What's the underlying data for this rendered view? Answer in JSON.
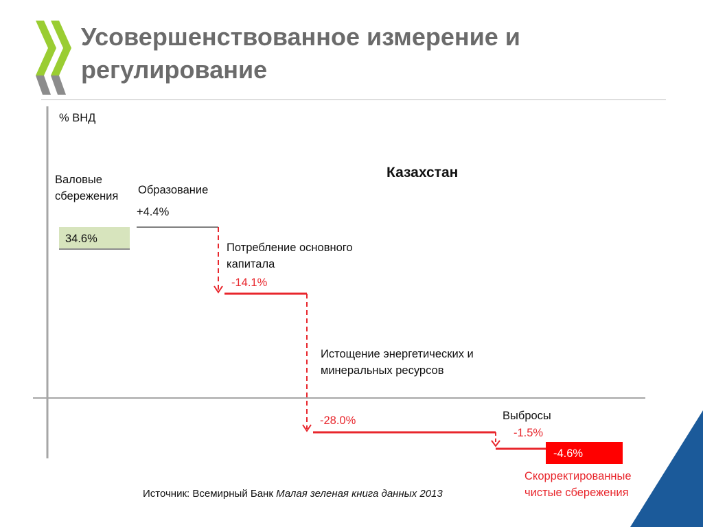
{
  "slide": {
    "title": "Усовершенствованное измерение и регулирование"
  },
  "chart_data": {
    "type": "waterfall",
    "unit_label": "% ВНД",
    "country": "Казахстан",
    "steps": [
      {
        "name_lines": [
          "Валовые",
          "сбережения"
        ],
        "value": "34.6%",
        "amount": 34.6,
        "kind": "start"
      },
      {
        "name_lines": [
          "Образование"
        ],
        "value": "+4.4%",
        "amount": 4.4,
        "kind": "increase"
      },
      {
        "name_lines": [
          "Потребление основного",
          "капитала"
        ],
        "value": "-14.1%",
        "amount": -14.1,
        "kind": "decrease"
      },
      {
        "name_lines": [
          "Истощение энергетических и",
          "минеральных ресурсов"
        ],
        "value": "-28.0%",
        "amount": -28.0,
        "kind": "decrease"
      },
      {
        "name_lines": [
          "Выбросы"
        ],
        "value": "-1.5%",
        "amount": -1.5,
        "kind": "decrease"
      },
      {
        "name_lines": [
          "Скорректированные",
          "чистые сбережения"
        ],
        "value": "-4.6%",
        "amount": -4.6,
        "kind": "total"
      }
    ],
    "colors": {
      "start": "#d7e4bd",
      "increase": "#7f7f7f",
      "decrease": "#e8262c",
      "total": "#ff0000",
      "axis": "#a6a6a6"
    }
  },
  "source": {
    "prefix": "Источник: Всемирный Банк ",
    "italic": "Малая зеленая книга данных 2013"
  }
}
